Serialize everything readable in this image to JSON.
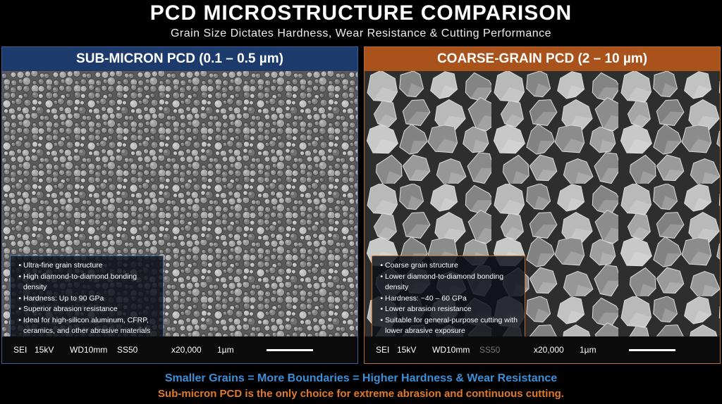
{
  "header": {
    "title": "PCD MICROSTRUCTURE COMPARISON",
    "subtitle": "Grain Size Dictates Hardness, Wear Resistance & Cutting Performance"
  },
  "panels": [
    {
      "heading": "SUB-MICRON PCD (0.1 – 0.5 µm)",
      "bullets": [
        "Ultra-fine grain structure",
        "High diamond-to-diamond bonding density",
        "Hardness: Up to 90 GPa",
        "Superior abrasion resistance",
        "Ideal for high-silicon aluminum, CFRP, ceramics, and other abrasive materials"
      ],
      "sem_bar": [
        "SEI",
        "15kV",
        "WD10mm",
        "SS50",
        "x20,000",
        "1µm"
      ]
    },
    {
      "heading": "COARSE-GRAIN PCD (2 – 10 µm)",
      "bullets": [
        "Coarse grain structure",
        "Lower diamond-to-diamond bonding density",
        "Hardness: ~40 – 60 GPa",
        "Lower abrasion resistance",
        "Suitable for general-purpose cutting with lower abrasive exposure"
      ],
      "sem_bar": [
        "SEI",
        "15kV",
        "WD10mm",
        "SS50",
        "x20,000",
        "1µm"
      ]
    }
  ],
  "footer": {
    "line1": "Smaller Grains = More Boundaries = Higher Hardness & Wear Resistance",
    "line2": "Sub-micron PCD is the only choice for extreme abrasion and continuous cutting."
  }
}
